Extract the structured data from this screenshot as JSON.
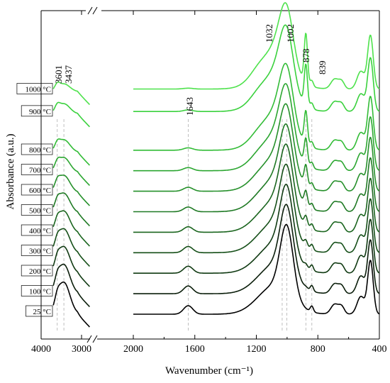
{
  "chart_data": {
    "type": "line",
    "xlabel": "Wavenumber (cm⁻¹)",
    "ylabel": "Absorbance (a.u.)",
    "x_ticks": [
      "4000",
      "3000",
      "2000",
      "1600",
      "1200",
      "800",
      "400"
    ],
    "axis_break": {
      "from": 2800,
      "to": 2000
    },
    "xlim_left_segment": [
      4000,
      2800
    ],
    "xlim_right_segment": [
      2000,
      400
    ],
    "peak_labels": [
      "3601",
      "3437",
      "1643",
      "1032",
      "1002",
      "878",
      "839"
    ],
    "peak_positions": [
      3601,
      3437,
      1643,
      1032,
      1002,
      878,
      839
    ],
    "series": [
      {
        "name": "25 °C",
        "color": "#000000"
      },
      {
        "name": "100 °C",
        "color": "#0b1e0b"
      },
      {
        "name": "200 °C",
        "color": "#103a12"
      },
      {
        "name": "300 °C",
        "color": "#154f18"
      },
      {
        "name": "400 °C",
        "color": "#1a651e"
      },
      {
        "name": "500 °C",
        "color": "#1f7a24"
      },
      {
        "name": "600 °C",
        "color": "#25902a"
      },
      {
        "name": "700 °C",
        "color": "#2ba630"
      },
      {
        "name": "800 °C",
        "color": "#32bc36"
      },
      {
        "name": "900 °C",
        "color": "#3ad13d"
      },
      {
        "name": "1000 °C",
        "color": "#4ee24c"
      }
    ]
  }
}
